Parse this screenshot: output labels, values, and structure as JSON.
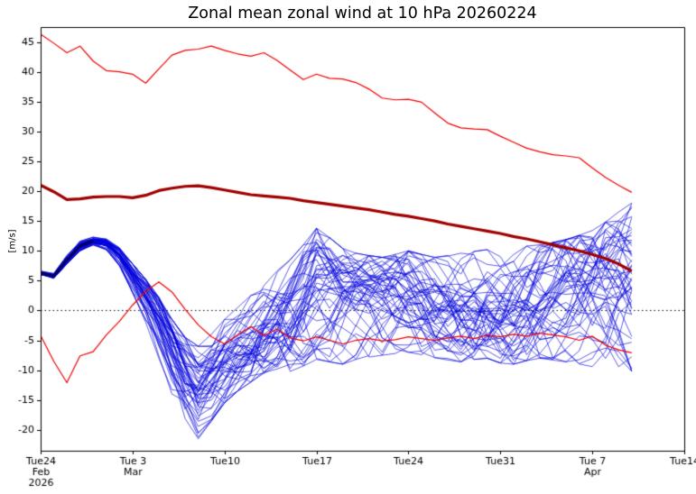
{
  "chart_data": {
    "type": "line",
    "title": "Zonal mean zonal wind at 10 hPa 20260224",
    "ylabel": "[m/s]",
    "xlabel": "",
    "x_unit": "days since 2026-02-24",
    "xlim": [
      0,
      49
    ],
    "ylim": [
      -23.5,
      47.5
    ],
    "grid": false,
    "legend": "none",
    "zero_line": true,
    "background": "#ffffff",
    "axis_color": "#000000",
    "yticks": [
      -20,
      -15,
      -10,
      -5,
      0,
      5,
      10,
      15,
      20,
      25,
      30,
      35,
      40,
      45
    ],
    "xticks": [
      {
        "day": 0,
        "line1": "Tue24",
        "line2": "Feb",
        "line3": "2026"
      },
      {
        "day": 7,
        "line1": "Tue 3",
        "line2": "Mar",
        "line3": ""
      },
      {
        "day": 14,
        "line1": "Tue10",
        "line2": "",
        "line3": ""
      },
      {
        "day": 21,
        "line1": "Tue17",
        "line2": "",
        "line3": ""
      },
      {
        "day": 28,
        "line1": "Tue24",
        "line2": "",
        "line3": ""
      },
      {
        "day": 35,
        "line1": "Tue31",
        "line2": "",
        "line3": ""
      },
      {
        "day": 42,
        "line1": "Tue 7",
        "line2": "Apr",
        "line3": ""
      },
      {
        "day": 49,
        "line1": "Tue14",
        "line2": "",
        "line3": ""
      }
    ],
    "series": [
      {
        "name": "climatology-max",
        "color": "#f00000",
        "width": 1.2,
        "x0": 0,
        "dx": 1,
        "y": [
          46.3,
          44.8,
          43.2,
          44.3,
          41.8,
          40.2,
          40.0,
          39.6,
          38.1,
          40.5,
          42.8,
          43.6,
          43.8,
          44.3,
          43.6,
          43.0,
          42.6,
          43.2,
          41.9,
          40.3,
          38.7,
          39.6,
          38.9,
          38.8,
          38.2,
          37.1,
          35.6,
          35.3,
          35.4,
          34.9,
          33.1,
          31.4,
          30.6,
          30.4,
          30.3,
          29.2,
          28.2,
          27.2,
          26.6,
          26.1,
          25.9,
          25.6,
          23.9,
          22.3,
          21.0,
          19.8
        ]
      },
      {
        "name": "climatology-mean",
        "color": "#a00000",
        "width": 3.2,
        "x0": 0,
        "dx": 1,
        "y": [
          21.0,
          19.9,
          18.6,
          18.7,
          19.0,
          19.1,
          19.1,
          18.9,
          19.3,
          20.1,
          20.5,
          20.8,
          20.9,
          20.6,
          20.2,
          19.8,
          19.4,
          19.2,
          19.0,
          18.8,
          18.4,
          18.1,
          17.8,
          17.5,
          17.2,
          16.9,
          16.5,
          16.1,
          15.8,
          15.4,
          15.0,
          14.5,
          14.1,
          13.7,
          13.3,
          12.9,
          12.4,
          12.0,
          11.5,
          11.0,
          10.5,
          10.0,
          9.4,
          8.7,
          7.8,
          6.6
        ]
      },
      {
        "name": "climatology-min",
        "color": "#f00000",
        "width": 1.2,
        "x0": 0,
        "dx": 1,
        "y": [
          -4.2,
          -8.5,
          -12.1,
          -7.6,
          -6.9,
          -4.1,
          -1.8,
          0.9,
          3.2,
          4.8,
          3.1,
          0.2,
          -2.4,
          -4.4,
          -5.6,
          -4.1,
          -2.7,
          -4.2,
          -3.1,
          -4.6,
          -5.1,
          -4.4,
          -5.0,
          -5.6,
          -5.0,
          -4.7,
          -5.1,
          -4.9,
          -4.4,
          -4.7,
          -5.0,
          -4.6,
          -4.3,
          -4.7,
          -4.1,
          -4.4,
          -4.0,
          -4.3,
          -3.8,
          -4.1,
          -4.4,
          -5.0,
          -4.3,
          -5.8,
          -6.6,
          -7.1
        ]
      },
      {
        "name": "analysis",
        "color": "#000066",
        "width": 3.4,
        "x0": 0,
        "dx": 1,
        "y": [
          6.3,
          5.8,
          8.5,
          10.8,
          11.7
        ]
      }
    ],
    "ensemble": {
      "name": "ensemble-members",
      "color": "#0000dd",
      "width": 0.8,
      "alpha": 0.8,
      "members": 51,
      "seed": 11,
      "x0": 0,
      "dx": 1,
      "median": [
        6.3,
        5.8,
        8.5,
        10.8,
        11.7,
        11.2,
        9.0,
        5.5,
        2.0,
        -2.0,
        -6.5,
        -10.5,
        -13.0,
        -11.0,
        -8.0,
        -6.0,
        -4.0,
        -2.0,
        -0.5,
        1.0,
        3.0,
        4.5,
        3.5,
        2.5,
        2.0,
        1.8,
        1.5,
        1.5,
        1.8,
        1.5,
        1.0,
        0.8,
        1.0,
        1.2,
        1.5,
        1.2,
        1.0,
        1.3,
        1.6,
        2.0,
        2.2,
        2.4,
        2.6,
        2.8,
        3.0,
        3.2
      ],
      "min": [
        6.0,
        5.4,
        7.8,
        10.0,
        11.0,
        10.2,
        7.5,
        3.0,
        -2.0,
        -8.0,
        -14.0,
        -18.5,
        -21.5,
        -18.5,
        -15.5,
        -13.5,
        -12.0,
        -10.5,
        -9.8,
        -10.2,
        -9.3,
        -8.2,
        -8.6,
        -9.0,
        -8.2,
        -7.8,
        -7.5,
        -7.2,
        -7.0,
        -7.4,
        -7.9,
        -8.3,
        -8.6,
        -8.2,
        -8.0,
        -8.8,
        -9.0,
        -8.4,
        -8.0,
        -8.3,
        -8.6,
        -9.0,
        -9.4,
        -9.7,
        -10.0,
        -10.2
      ],
      "max": [
        6.6,
        6.2,
        9.2,
        11.6,
        12.3,
        12.0,
        10.5,
        7.8,
        5.2,
        2.2,
        -1.5,
        -4.5,
        -6.0,
        -4.0,
        -1.5,
        0.5,
        2.5,
        5.0,
        6.8,
        8.5,
        11.0,
        13.8,
        12.2,
        10.4,
        9.6,
        9.2,
        8.9,
        9.4,
        10.0,
        9.4,
        8.9,
        9.3,
        9.6,
        9.9,
        10.2,
        9.8,
        10.3,
        10.8,
        11.0,
        11.4,
        11.9,
        12.6,
        13.4,
        14.8,
        16.5,
        18.0
      ]
    }
  }
}
